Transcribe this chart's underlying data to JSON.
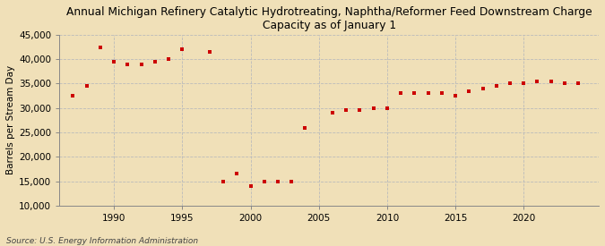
{
  "title": "Annual Michigan Refinery Catalytic Hydrotreating, Naphtha/Reformer Feed Downstream Charge\nCapacity as of January 1",
  "ylabel": "Barrels per Stream Day",
  "source": "Source: U.S. Energy Information Administration",
  "background_color": "#f0e0b8",
  "plot_bg_color": "#f0e0b8",
  "marker_color": "#cc0000",
  "years": [
    1987,
    1988,
    1989,
    1990,
    1991,
    1992,
    1993,
    1994,
    1995,
    1997,
    1998,
    1999,
    2000,
    2001,
    2002,
    2003,
    2004,
    2006,
    2007,
    2008,
    2009,
    2010,
    2011,
    2012,
    2013,
    2014,
    2015,
    2016,
    2017,
    2018,
    2019,
    2020,
    2021,
    2022,
    2023,
    2024
  ],
  "values": [
    32500,
    34500,
    42500,
    39500,
    39000,
    39000,
    39500,
    40000,
    42000,
    41500,
    15000,
    16500,
    14000,
    15000,
    15000,
    15000,
    26000,
    29000,
    29500,
    29500,
    30000,
    30000,
    33000,
    33000,
    33000,
    33000,
    32500,
    33500,
    34000,
    34500,
    35000,
    35000,
    35500,
    35500,
    35000,
    35000
  ],
  "ylim": [
    10000,
    45000
  ],
  "yticks": [
    10000,
    15000,
    20000,
    25000,
    30000,
    35000,
    40000,
    45000
  ],
  "xticks": [
    1990,
    1995,
    2000,
    2005,
    2010,
    2015,
    2020
  ],
  "xlim": [
    1986,
    2025.5
  ]
}
